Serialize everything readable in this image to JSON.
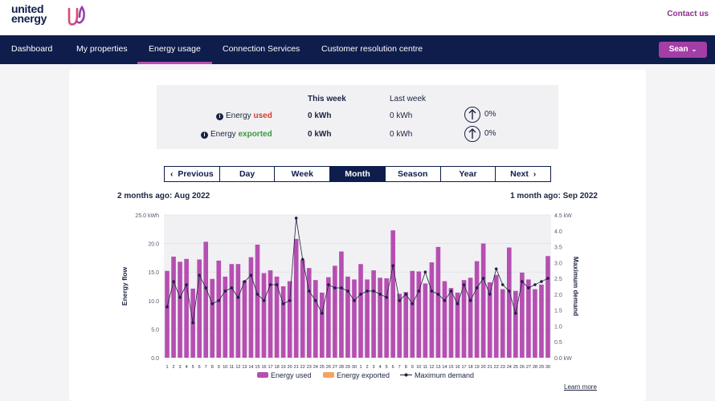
{
  "brand": {
    "line1": "united",
    "line2": "energy"
  },
  "header": {
    "contact": "Contact us"
  },
  "nav": {
    "items": [
      "Dashboard",
      "My properties",
      "Energy usage",
      "Connection Services",
      "Customer resolution centre"
    ],
    "active": 2,
    "user": "Sean"
  },
  "summary": {
    "this_week": "This week",
    "last_week": "Last week",
    "rows": [
      {
        "prefix": "Energy ",
        "kind": "used",
        "this": "0 kWh",
        "last": "0 kWh",
        "change": "0%"
      },
      {
        "prefix": "Energy ",
        "kind": "exported",
        "this": "0 kWh",
        "last": "0 kWh",
        "change": "0%"
      }
    ]
  },
  "period_tabs": {
    "previous": "Previous",
    "next": "Next",
    "items": [
      "Day",
      "Week",
      "Month",
      "Season",
      "Year"
    ],
    "active": "Month"
  },
  "periods": {
    "left": "2 months ago: Aug 2022",
    "right": "1 month ago: Sep 2022"
  },
  "learn_more": "Learn more",
  "colors": {
    "navy": "#0e1d4b",
    "purple": "#b64fb2",
    "orange": "#f4a45c",
    "used_red": "#d73a2f",
    "exported_green": "#3a9a3a"
  },
  "chart_data": {
    "type": "bar",
    "ylabel": "Energy flow",
    "y2label": "Maximum demand",
    "y_ticks": [
      "0.0",
      "5.0",
      "10.0",
      "15.0",
      "20.0",
      "25.0 kWh"
    ],
    "y2_ticks": [
      "0.0 kW",
      "0.5",
      "1.0",
      "1.5",
      "2.0",
      "2.5",
      "3.0",
      "3.5",
      "4.0",
      "4.5 kW"
    ],
    "ylim": [
      0,
      25
    ],
    "y2lim": [
      0,
      4.5
    ],
    "categories": [
      "1",
      "2",
      "3",
      "4",
      "5",
      "6",
      "7",
      "8",
      "9",
      "10",
      "11",
      "12",
      "13",
      "14",
      "15",
      "16",
      "17",
      "18",
      "19",
      "20",
      "21",
      "22",
      "23",
      "24",
      "25",
      "26",
      "27",
      "28",
      "29",
      "30",
      "1",
      "2",
      "3",
      "4",
      "5",
      "6",
      "7",
      "8",
      "9",
      "10",
      "11",
      "12",
      "13",
      "14",
      "15",
      "16",
      "17",
      "18",
      "19",
      "20",
      "21",
      "22",
      "23",
      "24",
      "25",
      "26",
      "27",
      "28",
      "29",
      "30"
    ],
    "series": [
      {
        "name": "Energy used",
        "type": "bar",
        "values": [
          15.2,
          17.7,
          16.8,
          17.3,
          12.1,
          17.2,
          20.3,
          13.8,
          17.0,
          14.2,
          16.4,
          16.4,
          13.5,
          17.6,
          19.8,
          14.8,
          15.3,
          14.2,
          12.5,
          13.4,
          20.8,
          17.1,
          15.7,
          13.6,
          11.4,
          14.1,
          16.1,
          18.6,
          14.2,
          13.7,
          16.4,
          13.7,
          15.3,
          14.0,
          13.9,
          22.3,
          11.2,
          11.5,
          15.2,
          15.1,
          13.0,
          16.7,
          19.4,
          13.4,
          12.2,
          11.4,
          13.6,
          14.0,
          16.9,
          20.0,
          13.2,
          14.5,
          12.0,
          19.3,
          11.7,
          14.9,
          13.7,
          12.0,
          12.8,
          17.8
        ]
      },
      {
        "name": "Energy exported",
        "type": "bar",
        "values": [
          0,
          0,
          0,
          0,
          0,
          0,
          0,
          0,
          0,
          0,
          0,
          0,
          0,
          0,
          0,
          0,
          0,
          0,
          0,
          0,
          0,
          0,
          0,
          0,
          0,
          0,
          0,
          0,
          0,
          0,
          0,
          0,
          0,
          0,
          0,
          0,
          0,
          0,
          0,
          0,
          0,
          0,
          0,
          0,
          0,
          0,
          0,
          0,
          0,
          0,
          0,
          0,
          0,
          0,
          0,
          0,
          0,
          0,
          0,
          0
        ]
      },
      {
        "name": "Maximum demand",
        "type": "line",
        "axis": "y2",
        "values": [
          1.6,
          2.4,
          1.9,
          2.3,
          1.1,
          2.6,
          2.2,
          1.7,
          1.8,
          2.1,
          2.2,
          1.9,
          2.4,
          2.6,
          2.0,
          1.8,
          2.3,
          2.3,
          1.7,
          1.8,
          4.4,
          3.1,
          2.1,
          1.8,
          1.4,
          2.3,
          2.2,
          2.2,
          2.1,
          1.8,
          2.0,
          2.1,
          2.1,
          2.0,
          1.9,
          2.9,
          1.8,
          2.0,
          1.7,
          2.1,
          2.7,
          2.1,
          2.0,
          1.8,
          2.1,
          1.7,
          2.3,
          1.8,
          2.2,
          2.5,
          2.0,
          2.8,
          2.3,
          2.1,
          1.4,
          2.4,
          2.2,
          2.3,
          2.4,
          2.5
        ]
      }
    ],
    "legend_position": "bottom"
  }
}
